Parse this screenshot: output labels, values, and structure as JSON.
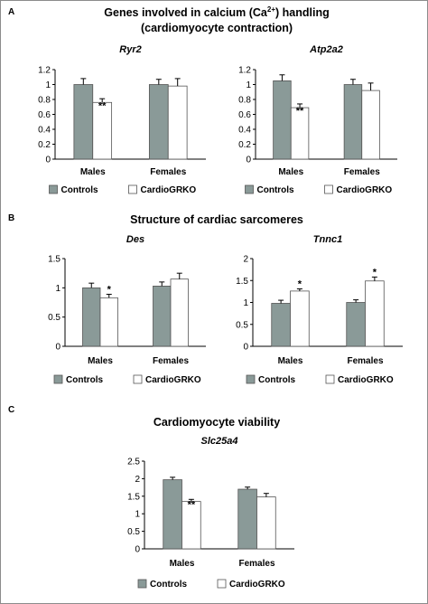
{
  "sections": [
    {
      "letter": "A",
      "title_lines": [
        "Genes involved in calcium (Ca2+) handling",
        "(cardiomyocyte contraction)"
      ],
      "title_rich": {
        "pre": "Genes involved in calcium (Ca",
        "sup": "2+",
        "post": ") handling"
      }
    },
    {
      "letter": "B",
      "title_lines": [
        "Structure of cardiac sarcomeres"
      ]
    },
    {
      "letter": "C",
      "title_lines": [
        "Cardiomyocyte viability"
      ]
    }
  ],
  "legend": {
    "series": [
      "Controls",
      "CardioGRKO"
    ]
  },
  "colors": {
    "controls": "#8a9a98",
    "cardiogrko": "#ffffff",
    "bar_stroke": "#555555"
  },
  "chart_data": [
    {
      "type": "bar",
      "title": "Ryr2",
      "categories": [
        "Males",
        "Females"
      ],
      "series": [
        {
          "name": "Controls",
          "values": [
            1.0,
            1.0
          ],
          "errors": [
            0.08,
            0.07
          ]
        },
        {
          "name": "CardioGRKO",
          "values": [
            0.76,
            0.98
          ],
          "errors": [
            0.05,
            0.1
          ]
        }
      ],
      "significance": [
        [
          "",
          ""
        ],
        [
          "**",
          ""
        ]
      ],
      "ylim": [
        0,
        1.2
      ],
      "yticks": [
        "0",
        "0.2",
        "0.4",
        "0.6",
        "0.8",
        "1",
        "1.2"
      ],
      "ytick_values": [
        0,
        0.2,
        0.4,
        0.6,
        0.8,
        1,
        1.2
      ],
      "legend": "bottom"
    },
    {
      "type": "bar",
      "title": "Atp2a2",
      "categories": [
        "Males",
        "Females"
      ],
      "series": [
        {
          "name": "Controls",
          "values": [
            1.05,
            1.0
          ],
          "errors": [
            0.08,
            0.07
          ]
        },
        {
          "name": "CardioGRKO",
          "values": [
            0.69,
            0.92
          ],
          "errors": [
            0.05,
            0.1
          ]
        }
      ],
      "significance": [
        [
          "",
          ""
        ],
        [
          "**",
          ""
        ]
      ],
      "ylim": [
        0,
        1.2
      ],
      "yticks": [
        "0",
        "0.2",
        "0.4",
        "0.6",
        "0.8",
        "1",
        "1.2"
      ],
      "ytick_values": [
        0,
        0.2,
        0.4,
        0.6,
        0.8,
        1,
        1.2
      ],
      "legend": "bottom"
    },
    {
      "type": "bar",
      "title": "Des",
      "categories": [
        "Males",
        "Females"
      ],
      "series": [
        {
          "name": "Controls",
          "values": [
            1.0,
            1.03
          ],
          "errors": [
            0.08,
            0.07
          ]
        },
        {
          "name": "CardioGRKO",
          "values": [
            0.83,
            1.15
          ],
          "errors": [
            0.06,
            0.1
          ]
        }
      ],
      "significance": [
        [
          "",
          ""
        ],
        [
          "*",
          ""
        ]
      ],
      "ylim": [
        0,
        1.5
      ],
      "yticks": [
        "0",
        "0.5",
        "1",
        "1.5"
      ],
      "ytick_values": [
        0,
        0.5,
        1,
        1.5
      ],
      "legend": "bottom"
    },
    {
      "type": "bar",
      "title": "Tnnc1",
      "categories": [
        "Males",
        "Females"
      ],
      "series": [
        {
          "name": "Controls",
          "values": [
            0.98,
            1.0
          ],
          "errors": [
            0.07,
            0.06
          ]
        },
        {
          "name": "CardioGRKO",
          "values": [
            1.26,
            1.49
          ],
          "errors": [
            0.05,
            0.09
          ]
        }
      ],
      "significance": [
        [
          "",
          ""
        ],
        [
          "*",
          "*"
        ]
      ],
      "ylim": [
        0,
        2
      ],
      "yticks": [
        "0",
        "0.5",
        "1",
        "1.5",
        "2"
      ],
      "ytick_values": [
        0,
        0.5,
        1,
        1.5,
        2
      ],
      "legend": "bottom"
    },
    {
      "type": "bar",
      "title": "Slc25a4",
      "categories": [
        "Males",
        "Females"
      ],
      "series": [
        {
          "name": "Controls",
          "values": [
            1.97,
            1.7
          ],
          "errors": [
            0.07,
            0.06
          ]
        },
        {
          "name": "CardioGRKO",
          "values": [
            1.35,
            1.48
          ],
          "errors": [
            0.06,
            0.1
          ]
        }
      ],
      "significance": [
        [
          "",
          ""
        ],
        [
          "**",
          ""
        ]
      ],
      "ylim": [
        0,
        2.5
      ],
      "yticks": [
        "0",
        "0.5",
        "1",
        "1.5",
        "2",
        "2.5"
      ],
      "ytick_values": [
        0,
        0.5,
        1,
        1.5,
        2,
        2.5
      ],
      "legend": "bottom"
    }
  ]
}
